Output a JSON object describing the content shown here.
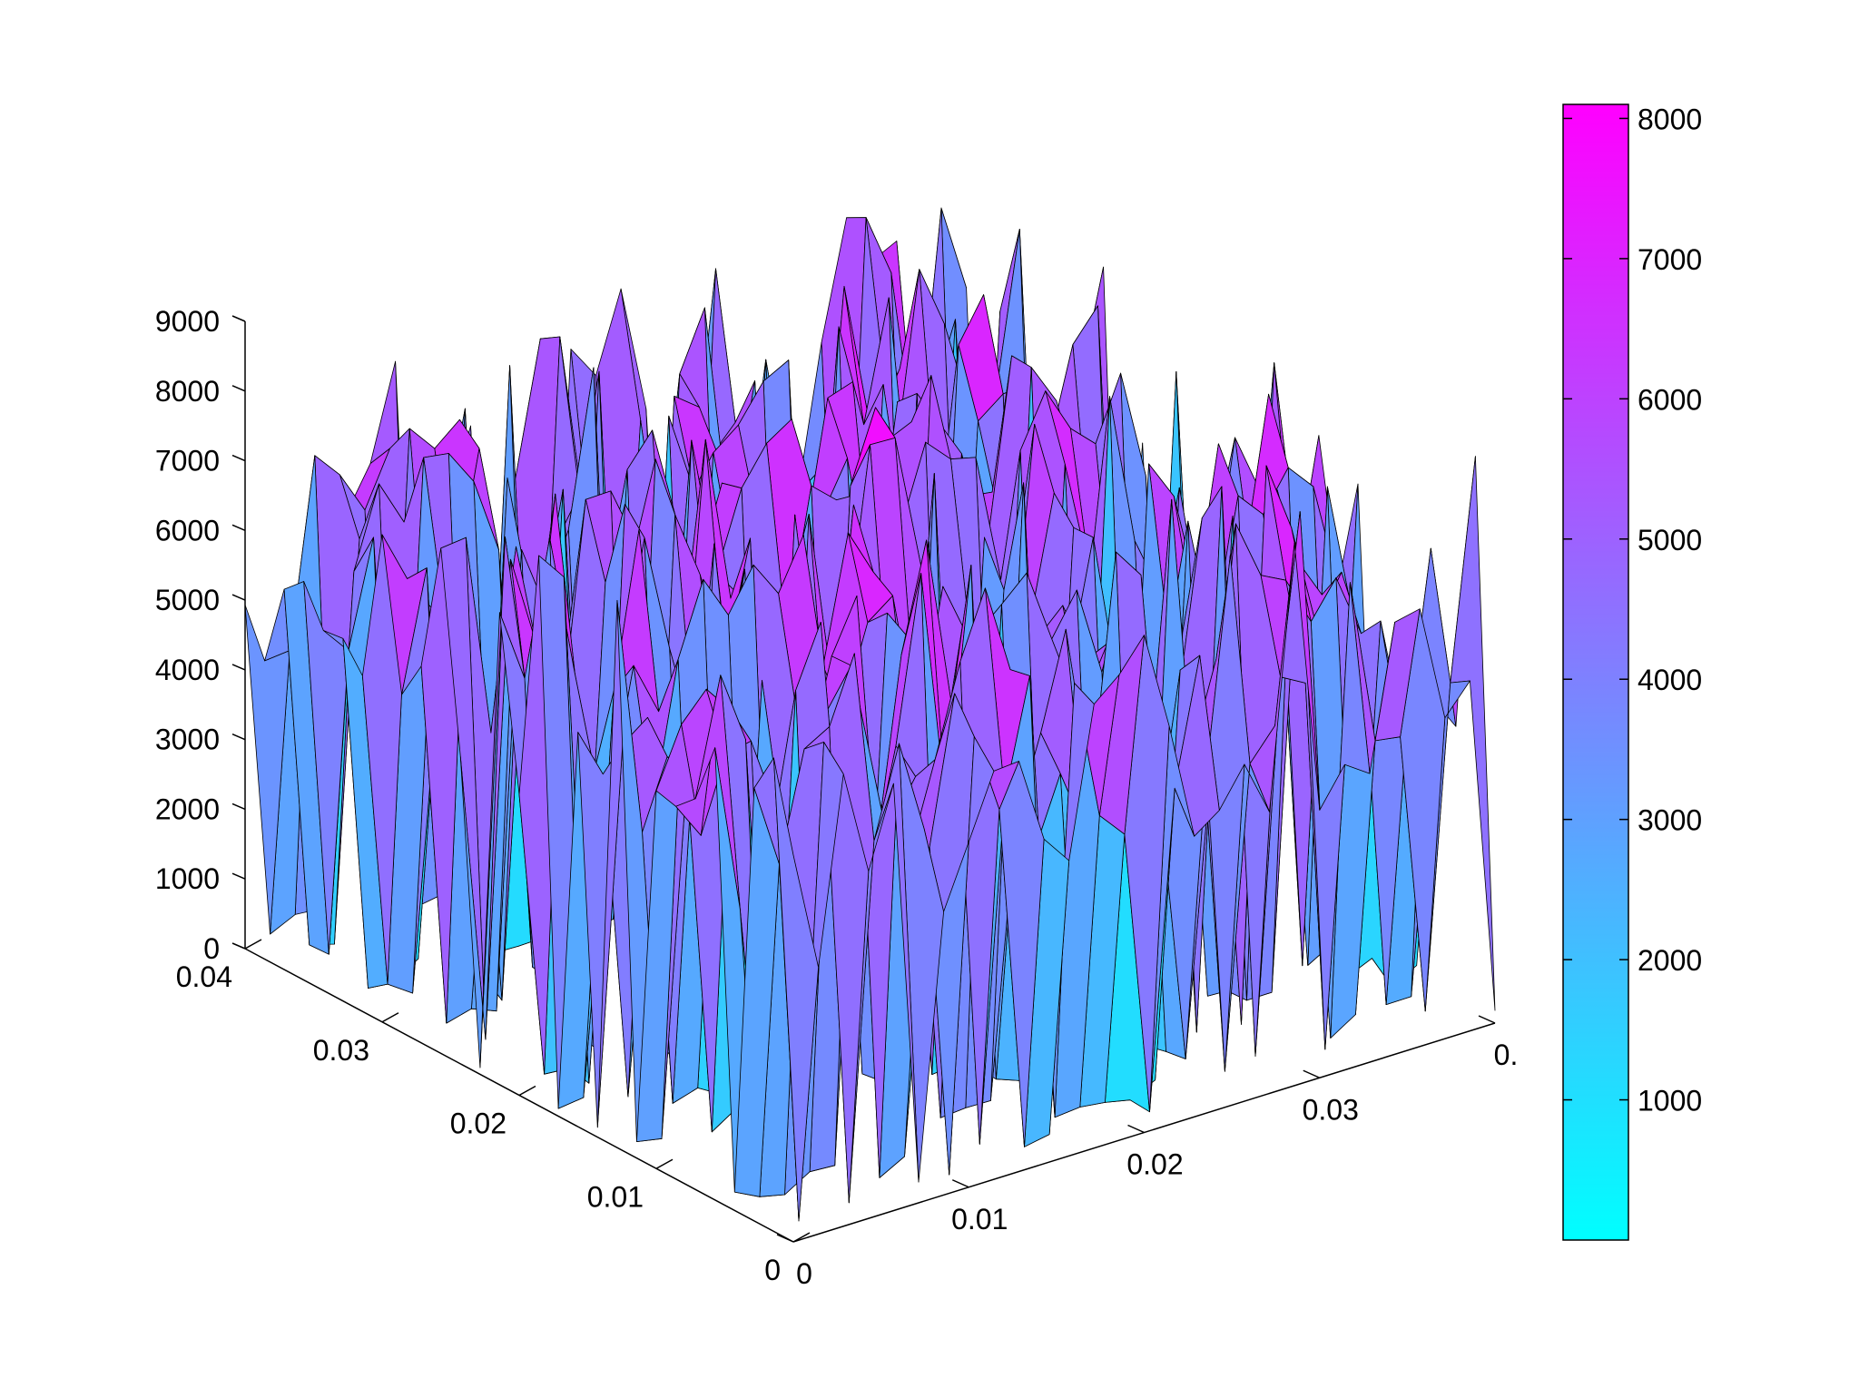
{
  "chart_data": {
    "type": "surface3d",
    "title": "",
    "xlabel": "",
    "ylabel": "",
    "zlabel": "",
    "x_axis": {
      "range": [
        0,
        0.04
      ],
      "tick_labels": [
        "0",
        "0.01",
        "0.02",
        "0.03",
        "0."
      ]
    },
    "y_axis": {
      "range": [
        0,
        0.04
      ],
      "tick_labels": [
        "0",
        "0.01",
        "0.02",
        "0.03",
        "0.04"
      ]
    },
    "z_axis": {
      "range": [
        0,
        9000
      ],
      "tick_labels": [
        "0",
        "1000",
        "2000",
        "3000",
        "4000",
        "5000",
        "6000",
        "7000",
        "8000",
        "9000"
      ]
    },
    "colorbar": {
      "range": [
        0,
        8100
      ],
      "tick_labels": [
        "1000",
        "2000",
        "3000",
        "4000",
        "5000",
        "6000",
        "7000",
        "8000"
      ],
      "colormap": "cool",
      "color_low": "#00ffff",
      "color_high": "#ff00ff"
    },
    "grid": false,
    "edge_color": "#000000",
    "surface": {
      "description_values": "spiky columns of height 0–8100 on a 0–0.04 x 0–0.04 domain",
      "max_height": 8100,
      "min_height": 0
    }
  }
}
